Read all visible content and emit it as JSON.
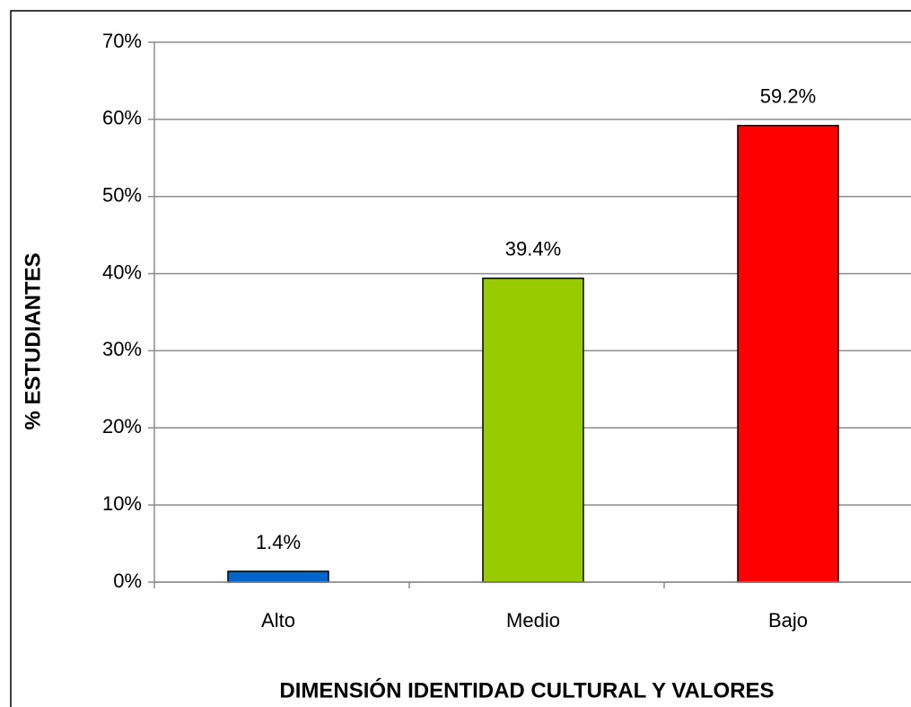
{
  "chart_data": {
    "type": "bar",
    "categories": [
      "Alto",
      "Medio",
      "Bajo"
    ],
    "values": [
      1.4,
      39.4,
      59.2
    ],
    "value_labels": [
      "1.4%",
      "39.4%",
      "59.2%"
    ],
    "colors": [
      "#0066cc",
      "#99cc00",
      "#ff0000"
    ],
    "ylim": [
      0,
      70
    ],
    "yticks": [
      {
        "value": 0,
        "label": "0%"
      },
      {
        "value": 10,
        "label": "10%"
      },
      {
        "value": 20,
        "label": "20%"
      },
      {
        "value": 30,
        "label": "30%"
      },
      {
        "value": 40,
        "label": "40%"
      },
      {
        "value": 50,
        "label": "50%"
      },
      {
        "value": 60,
        "label": "60%"
      },
      {
        "value": 70,
        "label": "70%"
      }
    ],
    "grid": true,
    "y_label": "% ESTUDIANTES",
    "x_label": "DIMENSIÓN IDENTIDAD CULTURAL Y VALORES"
  }
}
